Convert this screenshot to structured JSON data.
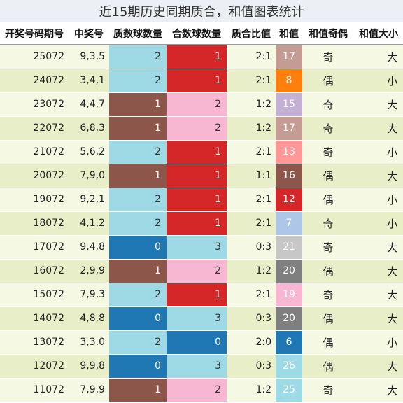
{
  "title": "近15期历史同期质合，和值图表统计",
  "columns": [
    "开奖号码期号",
    "中奖号",
    "质数球数量",
    "合数球数量",
    "质合比值",
    "和值",
    "和值奇偶",
    "和值大小"
  ],
  "colors": {
    "prime": {
      "0": "#1f77b4",
      "1": "#8c564b",
      "2": "#9edae5"
    },
    "composite": {
      "0": "#1f77b4",
      "1": "#d62728",
      "2": "#f7b6d2",
      "3": "#9edae5"
    }
  },
  "rows": [
    {
      "issue": "25072",
      "numbers": "9,3,5",
      "prime": "2",
      "composite": "1",
      "ratio": "2:1",
      "sum": "17",
      "sum_color": "#c49c94",
      "parity": "奇",
      "size": "大"
    },
    {
      "issue": "24072",
      "numbers": "3,4,1",
      "prime": "2",
      "composite": "1",
      "ratio": "2:1",
      "sum": "8",
      "sum_color": "#ff7f0e",
      "parity": "偶",
      "size": "小"
    },
    {
      "issue": "23072",
      "numbers": "4,4,7",
      "prime": "1",
      "composite": "2",
      "ratio": "1:2",
      "sum": "15",
      "sum_color": "#c5b0d5",
      "parity": "奇",
      "size": "大"
    },
    {
      "issue": "22072",
      "numbers": "6,8,3",
      "prime": "1",
      "composite": "2",
      "ratio": "1:2",
      "sum": "17",
      "sum_color": "#c49c94",
      "parity": "奇",
      "size": "大"
    },
    {
      "issue": "21072",
      "numbers": "5,6,2",
      "prime": "2",
      "composite": "1",
      "ratio": "2:1",
      "sum": "13",
      "sum_color": "#ff9896",
      "parity": "奇",
      "size": "小"
    },
    {
      "issue": "20072",
      "numbers": "7,9,0",
      "prime": "1",
      "composite": "1",
      "ratio": "1:1",
      "sum": "16",
      "sum_color": "#8c564b",
      "parity": "偶",
      "size": "大"
    },
    {
      "issue": "19072",
      "numbers": "9,2,1",
      "prime": "2",
      "composite": "1",
      "ratio": "2:1",
      "sum": "12",
      "sum_color": "#d62728",
      "parity": "偶",
      "size": "小"
    },
    {
      "issue": "18072",
      "numbers": "4,1,2",
      "prime": "2",
      "composite": "1",
      "ratio": "2:1",
      "sum": "7",
      "sum_color": "#aec7e8",
      "parity": "奇",
      "size": "小"
    },
    {
      "issue": "17072",
      "numbers": "9,4,8",
      "prime": "0",
      "composite": "3",
      "ratio": "0:3",
      "sum": "21",
      "sum_color": "#c7c7c7",
      "parity": "奇",
      "size": "大"
    },
    {
      "issue": "16072",
      "numbers": "2,9,9",
      "prime": "1",
      "composite": "2",
      "ratio": "1:2",
      "sum": "20",
      "sum_color": "#7f7f7f",
      "parity": "偶",
      "size": "大"
    },
    {
      "issue": "15072",
      "numbers": "7,9,3",
      "prime": "2",
      "composite": "1",
      "ratio": "2:1",
      "sum": "19",
      "sum_color": "#f7b6d2",
      "parity": "奇",
      "size": "大"
    },
    {
      "issue": "14072",
      "numbers": "4,8,8",
      "prime": "0",
      "composite": "3",
      "ratio": "0:3",
      "sum": "20",
      "sum_color": "#7f7f7f",
      "parity": "偶",
      "size": "大"
    },
    {
      "issue": "13072",
      "numbers": "3,3,0",
      "prime": "2",
      "composite": "0",
      "ratio": "2:0",
      "sum": "6",
      "sum_color": "#1f77b4",
      "parity": "偶",
      "size": "小"
    },
    {
      "issue": "12072",
      "numbers": "9,9,8",
      "prime": "0",
      "composite": "3",
      "ratio": "0:3",
      "sum": "26",
      "sum_color": "#9edae5",
      "parity": "偶",
      "size": "大"
    },
    {
      "issue": "11072",
      "numbers": "7,9,9",
      "prime": "1",
      "composite": "2",
      "ratio": "1:2",
      "sum": "25",
      "sum_color": "#9edae5",
      "parity": "奇",
      "size": "大"
    }
  ]
}
